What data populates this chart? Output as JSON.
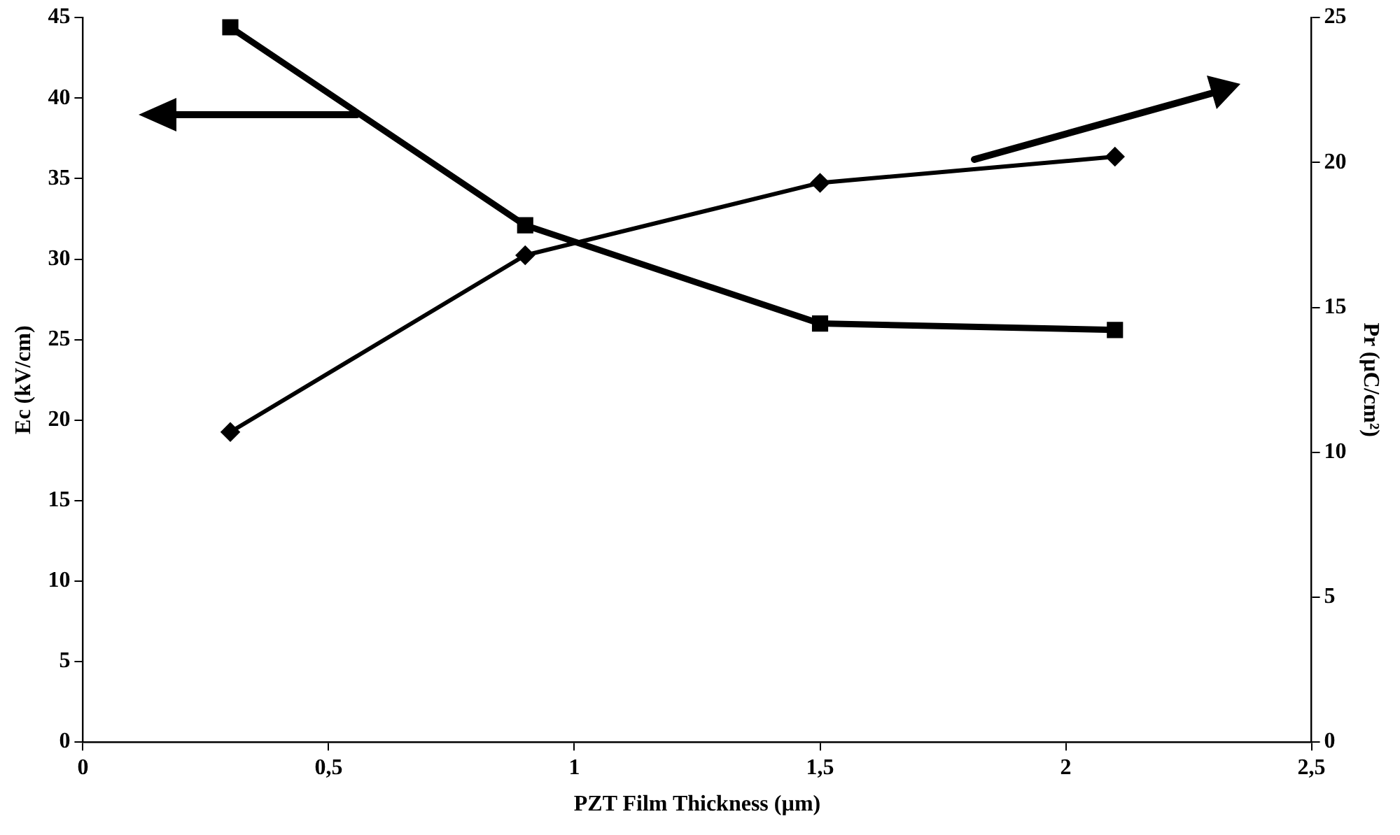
{
  "chart_data": {
    "type": "line",
    "xlabel": "PZT Film Thickness (µm)",
    "ylabel": "Ec (kV/cm)",
    "y2label": "Pr (µC/cm²)",
    "x": [
      0.3,
      0.9,
      1.5,
      2.1
    ],
    "series": [
      {
        "color": "#000000",
        "values": [
          44.4,
          32.1,
          26.0,
          25.6
        ],
        "marker": "square"
      },
      {
        "color": "#000000",
        "values": [
          10.7,
          16.8,
          19.3,
          20.2
        ],
        "marker": "diamond",
        "axis": "y2"
      }
    ],
    "xlim": [
      0,
      2.5
    ],
    "xticks": [
      0,
      {
        "value": 0.5,
        "label": "0,5"
      },
      1,
      {
        "value": 1.5,
        "label": "1,5"
      },
      2,
      {
        "value": 2.5,
        "label": "2,5"
      }
    ],
    "ylim": [
      0,
      45
    ],
    "yticks": [
      0,
      5,
      10,
      15,
      20,
      25,
      30,
      35,
      40,
      45
    ],
    "y2lim": [
      0,
      25
    ],
    "y2ticks": [
      0,
      5,
      10,
      15,
      20,
      25
    ],
    "grid": false,
    "legend": false
  }
}
